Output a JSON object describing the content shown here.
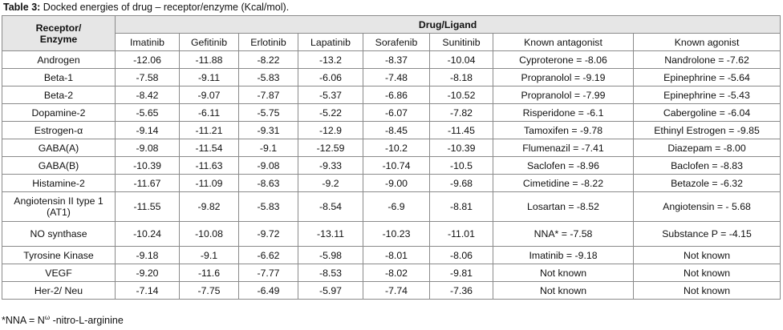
{
  "caption": {
    "label": "Table 3:",
    "text": " Docked energies of drug – receptor/enzyme (Kcal/mol)."
  },
  "table": {
    "receptor_header_line1": "Receptor/",
    "receptor_header_line2": "Enzyme",
    "group_header": "Drug/Ligand",
    "columns": [
      "Imatinib",
      "Gefitinib",
      "Erlotinib",
      "Lapatinib",
      "Sorafenib",
      "Sunitinib",
      "Known antagonist",
      "Known agonist"
    ],
    "rows": [
      {
        "receptor": "Androgen",
        "values": [
          "-12.06",
          "-11.88",
          "-8.22",
          "-13.2",
          "-8.37",
          "-10.04"
        ],
        "antagonist": "Cyproterone = -8.06",
        "agonist": "Nandrolone = -7.62"
      },
      {
        "receptor": "Beta-1",
        "values": [
          "-7.58",
          "-9.11",
          "-5.83",
          "-6.06",
          "-7.48",
          "-8.18"
        ],
        "antagonist": "Propranolol = -9.19",
        "agonist": "Epinephrine = -5.64"
      },
      {
        "receptor": "Beta-2",
        "values": [
          "-8.42",
          "-9.07",
          "-7.87",
          "-5.37",
          "-6.86",
          "-10.52"
        ],
        "antagonist": "Propranolol = -7.99",
        "agonist": "Epinephrine = -5.43"
      },
      {
        "receptor": "Dopamine-2",
        "values": [
          "-5.65",
          "-6.11",
          "-5.75",
          "-5.22",
          "-6.07",
          "-7.82"
        ],
        "antagonist": "Risperidone = -6.1",
        "agonist": "Cabergoline = -6.04"
      },
      {
        "receptor": "Estrogen-α",
        "values": [
          "-9.14",
          "-11.21",
          "-9.31",
          "-12.9",
          "-8.45",
          "-11.45"
        ],
        "antagonist": "Tamoxifen = -9.78",
        "agonist": "Ethinyl Estrogen = -9.85"
      },
      {
        "receptor": "GABA(A)",
        "values": [
          "-9.08",
          "-11.54",
          "-9.1",
          "-12.59",
          "-10.2",
          "-10.39"
        ],
        "antagonist": "Flumenazil = -7.41",
        "agonist": "Diazepam = -8.00"
      },
      {
        "receptor": "GABA(B)",
        "values": [
          "-10.39",
          "-11.63",
          "-9.08",
          "-9.33",
          "-10.74",
          "-10.5"
        ],
        "antagonist": "Saclofen = -8.96",
        "agonist": "Baclofen = -8.83"
      },
      {
        "receptor": "Histamine-2",
        "values": [
          "-11.67",
          "-11.09",
          "-8.63",
          "-9.2",
          "-9.00",
          "-9.68"
        ],
        "antagonist": "Cimetidine = -8.22",
        "agonist": "Betazole = -6.32"
      },
      {
        "receptor": "Angiotensin II type 1 (AT1)",
        "values": [
          "-11.55",
          "-9.82",
          "-5.83",
          "-8.54",
          "-6.9",
          "-8.81"
        ],
        "antagonist": "Losartan = -8.52",
        "agonist": "Angiotensin = - 5.68"
      },
      {
        "receptor": "NO synthase",
        "values": [
          "-10.24",
          "-10.08",
          "-9.72",
          "-13.11",
          "-10.23",
          "-11.01"
        ],
        "antagonist": "NNA* = -7.58",
        "agonist": "Substance P  = -4.15"
      },
      {
        "receptor": "Tyrosine Kinase",
        "values": [
          "-9.18",
          "-9.1",
          "-6.62",
          "-5.98",
          "-8.01",
          "-8.06"
        ],
        "antagonist": "Imatinib = -9.18",
        "agonist": "Not known"
      },
      {
        "receptor": "VEGF",
        "values": [
          "-9.20",
          "-11.6",
          "-7.77",
          "-8.53",
          "-8.02",
          "-9.81"
        ],
        "antagonist": "Not known",
        "agonist": "Not known"
      },
      {
        "receptor": "Her-2/ Neu",
        "values": [
          "-7.14",
          "-7.75",
          "-6.49",
          "-5.97",
          "-7.74",
          "-7.36"
        ],
        "antagonist": "Not known",
        "agonist": "Not known"
      }
    ]
  },
  "footnote": {
    "prefix": "*NNA = N",
    "superscript": "ω",
    "suffix": " -nitro-L-arginine"
  }
}
